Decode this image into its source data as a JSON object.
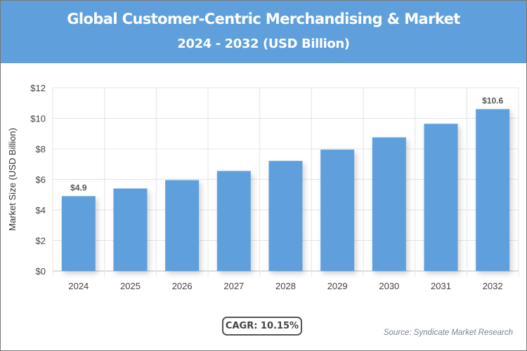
{
  "header": {
    "title": "Global Customer-Centric Merchandising & Market",
    "subtitle": "2024 - 2032 (USD Billion)",
    "background": "#5fa0dc"
  },
  "chart_data": {
    "type": "bar",
    "title": "Global Customer-Centric Merchandising & Market",
    "subtitle": "2024 - 2032 (USD Billion)",
    "ylabel": "Market Size (USD Billion)",
    "xlabel": "",
    "categories": [
      "2024",
      "2025",
      "2026",
      "2027",
      "2028",
      "2029",
      "2030",
      "2031",
      "2032"
    ],
    "values": [
      4.9,
      5.4,
      5.95,
      6.55,
      7.21,
      7.95,
      8.75,
      9.64,
      10.6
    ],
    "data_labels": {
      "0": "$4.9",
      "8": "$10.6"
    },
    "ylim": [
      0,
      12
    ],
    "yticks": [
      "$0",
      "$2",
      "$4",
      "$6",
      "$8",
      "$10",
      "$12"
    ],
    "grid": true,
    "bar_color": "#5fa0dc"
  },
  "footer": {
    "cagr": "CAGR: 10.15%",
    "source": "Source: Syndicate Market Research"
  }
}
